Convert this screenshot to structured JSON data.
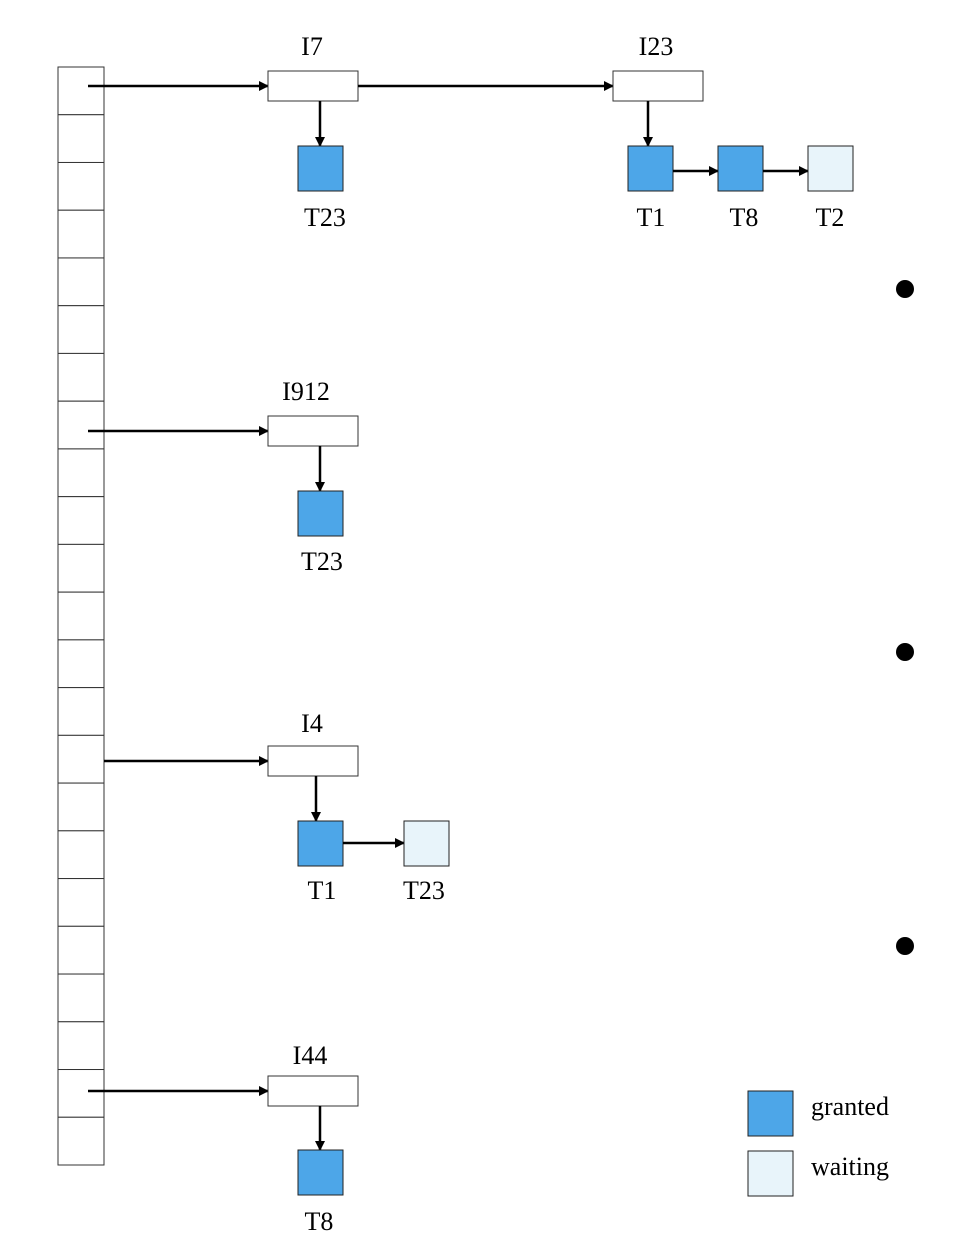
{
  "lock_table": [
    {
      "item": "I7",
      "requests": [
        "T23"
      ]
    },
    {
      "item": "I23",
      "requests": [
        "T1",
        "T8",
        "T2"
      ]
    },
    {
      "item": "I912",
      "requests": [
        "T23"
      ]
    },
    {
      "item": "I4",
      "requests": [
        "T1",
        "T23"
      ]
    },
    {
      "item": "I44",
      "requests": [
        "T8"
      ]
    }
  ],
  "legend": {
    "granted": "granted",
    "waiting": "waiting"
  }
}
